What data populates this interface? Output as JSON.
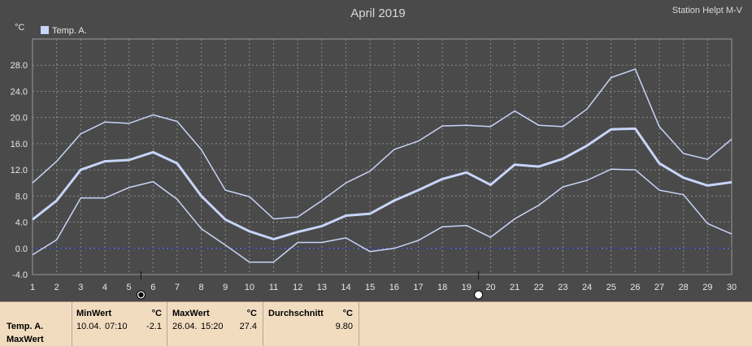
{
  "chart_data": {
    "type": "line",
    "title": "April 2019",
    "station": "Station Helpt M-V",
    "unit": "°C",
    "legend": {
      "label": "Temp. A.",
      "color": "#c8d4f8",
      "placement": "top-left"
    },
    "x": [
      1,
      2,
      3,
      4,
      5,
      6,
      7,
      8,
      9,
      10,
      11,
      12,
      13,
      14,
      15,
      16,
      17,
      18,
      19,
      20,
      21,
      22,
      23,
      24,
      25,
      26,
      27,
      28,
      29,
      30
    ],
    "xlim": [
      1,
      30
    ],
    "ylim": [
      -4,
      32
    ],
    "yticks": [
      "-4.0",
      "0.0",
      "4.0",
      "8.0",
      "12.0",
      "16.0",
      "20.0",
      "24.0",
      "28.0"
    ],
    "grid": true,
    "reference_line": {
      "y": 0,
      "color": "#2030c0"
    },
    "series": [
      {
        "name": "Max",
        "color": "#c8d4f8",
        "width": 1.5,
        "values": [
          10.0,
          13.3,
          17.5,
          19.3,
          19.1,
          20.4,
          19.4,
          15.1,
          8.9,
          7.9,
          4.5,
          4.8,
          7.3,
          10.0,
          11.8,
          15.1,
          16.4,
          18.7,
          18.8,
          18.6,
          21.0,
          18.8,
          18.6,
          21.3,
          26.1,
          27.4,
          18.6,
          14.5,
          13.6,
          16.7
        ]
      },
      {
        "name": "Avg",
        "color": "#c8d4f8",
        "width": 3,
        "values": [
          4.4,
          7.3,
          12.0,
          13.3,
          13.5,
          14.7,
          13.0,
          8.0,
          4.4,
          2.6,
          1.4,
          2.5,
          3.4,
          5.0,
          5.3,
          7.3,
          8.9,
          10.6,
          11.6,
          9.7,
          12.8,
          12.5,
          13.7,
          15.7,
          18.2,
          18.3,
          13.0,
          10.8,
          9.6,
          10.1
        ]
      },
      {
        "name": "Min",
        "color": "#c8d4f8",
        "width": 1.5,
        "values": [
          -1.0,
          1.3,
          7.7,
          7.7,
          9.3,
          10.2,
          7.5,
          3.0,
          0.5,
          -2.1,
          -2.1,
          0.9,
          0.9,
          1.6,
          -0.5,
          0.0,
          1.2,
          3.3,
          3.5,
          1.7,
          4.5,
          6.6,
          9.4,
          10.4,
          12.1,
          12.0,
          8.9,
          8.2,
          3.8,
          2.2
        ]
      }
    ],
    "moon_phases": [
      {
        "day": 5.5,
        "phase": "new-moon"
      },
      {
        "day": 19.5,
        "phase": "full-moon"
      }
    ]
  },
  "footer": {
    "row_label_1": "Temp. A.",
    "row_label_2": "MaxWert",
    "min": {
      "header": "MinWert",
      "unit": "°C",
      "date": "10.04.",
      "time": "07:10",
      "value": "-2.1"
    },
    "max": {
      "header": "MaxWert",
      "unit": "°C",
      "date": "26.04.",
      "time": "15:20",
      "value": "27.4"
    },
    "avg": {
      "header": "Durchschnitt",
      "unit": "°C",
      "value": "9.80"
    }
  }
}
